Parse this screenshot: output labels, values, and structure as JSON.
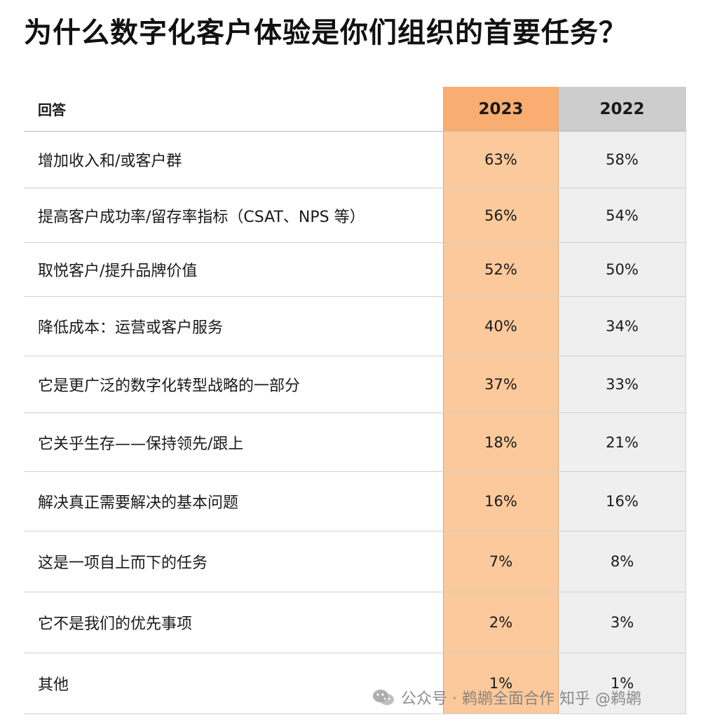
{
  "title": "为什么数字化客户体验是你们组织的首要任务？",
  "chart_data": {
    "type": "table",
    "title": "为什么数字化客户体验是你们组织的首要任务？",
    "columns": [
      "回答",
      "2023",
      "2022"
    ],
    "rows": [
      {
        "label": "增加收入和/或客户群",
        "v2023": "63%",
        "v2022": "58%"
      },
      {
        "label": "提高客户成功率/留存率指标（CSAT、NPS 等）",
        "v2023": "56%",
        "v2022": "54%"
      },
      {
        "label": "取悦客户/提升品牌价值",
        "v2023": "52%",
        "v2022": "50%"
      },
      {
        "label": "降低成本：运营或客户服务",
        "v2023": "40%",
        "v2022": "34%"
      },
      {
        "label": "它是更广泛的数字化转型战略的一部分",
        "v2023": "37%",
        "v2022": "33%"
      },
      {
        "label": "它关乎生存——保持领先/跟上",
        "v2023": "18%",
        "v2022": "21%"
      },
      {
        "label": "解决真正需要解决的基本问题",
        "v2023": "16%",
        "v2022": "16%"
      },
      {
        "label": "这是一项自上而下的任务",
        "v2023": "7%",
        "v2022": "8%"
      },
      {
        "label": "它不是我们的优先事项",
        "v2023": "2%",
        "v2022": "3%"
      },
      {
        "label": "其他",
        "v2023": "1%",
        "v2022": "1%"
      }
    ]
  },
  "watermark": {
    "text": "公众号 · 鹈鹕全面合作 知乎 @鹈鹕",
    "icon": "wechat-icon"
  },
  "colors": {
    "col2023_bg": "#fbc99b",
    "col2023_header": "#f9ad71",
    "col2022_bg": "#efefef",
    "col2022_header": "#cdcdcd"
  }
}
